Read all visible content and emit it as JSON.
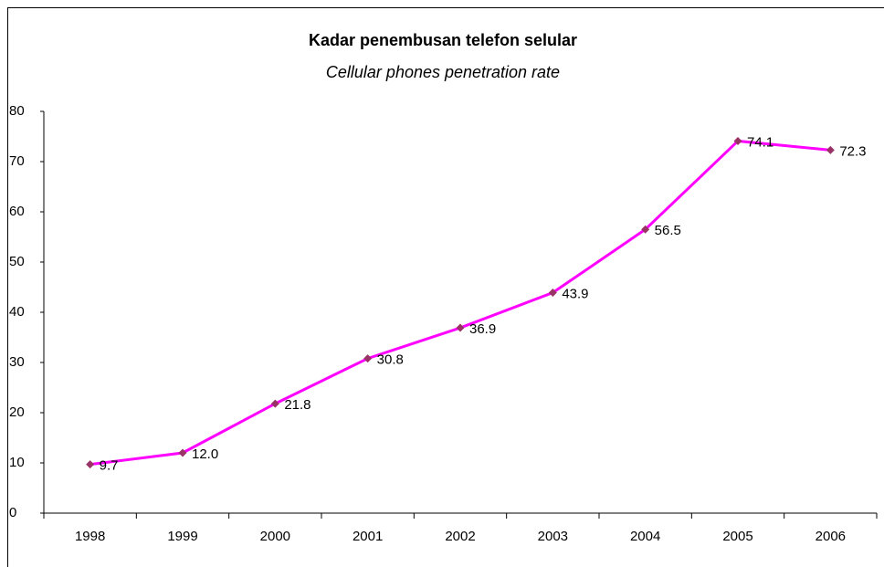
{
  "chart_data": {
    "type": "line",
    "title": "Kadar penembusan telefon selular",
    "subtitle": "Cellular phones penetration rate",
    "categories": [
      "1998",
      "1999",
      "2000",
      "2001",
      "2002",
      "2003",
      "2004",
      "2005",
      "2006"
    ],
    "series": [
      {
        "name": "Cellular phones penetration rate",
        "color": "#ff00ff",
        "marker_color": "#993366",
        "values": [
          9.7,
          12.0,
          21.8,
          30.8,
          36.9,
          43.9,
          56.5,
          74.1,
          72.3
        ],
        "value_labels": [
          "9.7",
          "12.0",
          "21.8",
          "30.8",
          "36.9",
          "43.9",
          "56.5",
          "74.1",
          "72.3"
        ]
      }
    ],
    "ylim": [
      0,
      80
    ],
    "yticks": [
      0,
      10,
      20,
      30,
      40,
      50,
      60,
      70,
      80
    ],
    "grid": false,
    "legend": false
  }
}
